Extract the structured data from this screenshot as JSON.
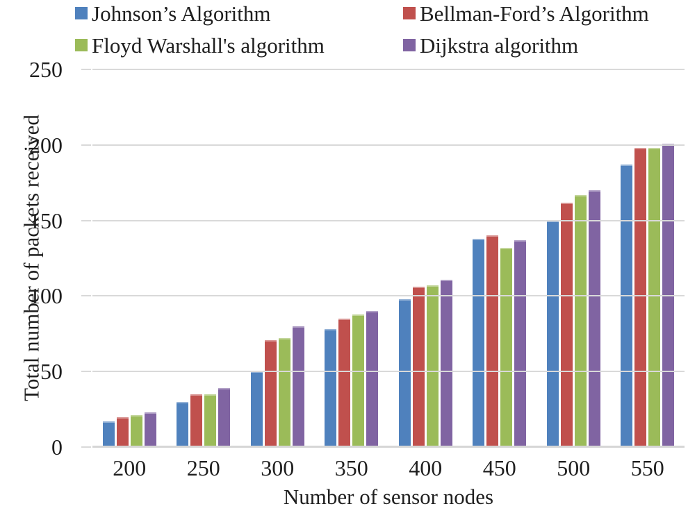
{
  "colors": {
    "background": "#ffffff",
    "text": "#1f1f1f",
    "gridline": "#d9d9d9",
    "axis_line": "#d6d6d6",
    "tick_mark": "#d9d9d9"
  },
  "legend": {
    "items": [
      {
        "label": "Johnson’s Algorithm",
        "color": "#4F81BD",
        "edge": "#95B3D7"
      },
      {
        "label": "Bellman-Ford’s Algorithm",
        "color": "#C0504D",
        "edge": "#D99694"
      },
      {
        "label": "Floyd Warshall's algorithm",
        "color": "#9BBB59",
        "edge": "#C3D69B"
      },
      {
        "label": "Dijkstra algorithm",
        "color": "#8064A2",
        "edge": "#B2A1C7"
      }
    ]
  },
  "chart_data": {
    "type": "bar",
    "title": "",
    "xlabel": "Number of sensor nodes",
    "ylabel": "Total number of packets received",
    "categories": [
      "200",
      "250",
      "300",
      "350",
      "400",
      "450",
      "500",
      "550"
    ],
    "series": [
      {
        "name": "Johnson’s Algorithm",
        "color": "#4F81BD",
        "edge": "#95B3D7",
        "values": [
          17,
          30,
          50,
          78,
          98,
          138,
          150,
          187
        ]
      },
      {
        "name": "Bellman-Ford’s Algorithm",
        "color": "#C0504D",
        "edge": "#D99694",
        "values": [
          20,
          35,
          71,
          85,
          106,
          140,
          162,
          198
        ]
      },
      {
        "name": "Floyd Warshall's algorithm",
        "color": "#9BBB59",
        "edge": "#C3D69B",
        "values": [
          21,
          35,
          72,
          88,
          107,
          132,
          167,
          198
        ]
      },
      {
        "name": "Dijkstra algorithm",
        "color": "#8064A2",
        "edge": "#B2A1C7",
        "values": [
          23,
          39,
          80,
          90,
          111,
          137,
          170,
          201
        ]
      }
    ],
    "ylim": [
      0,
      250
    ],
    "yticks": [
      0,
      50,
      100,
      150,
      200,
      250
    ],
    "grid": true,
    "legend_position": "top"
  }
}
